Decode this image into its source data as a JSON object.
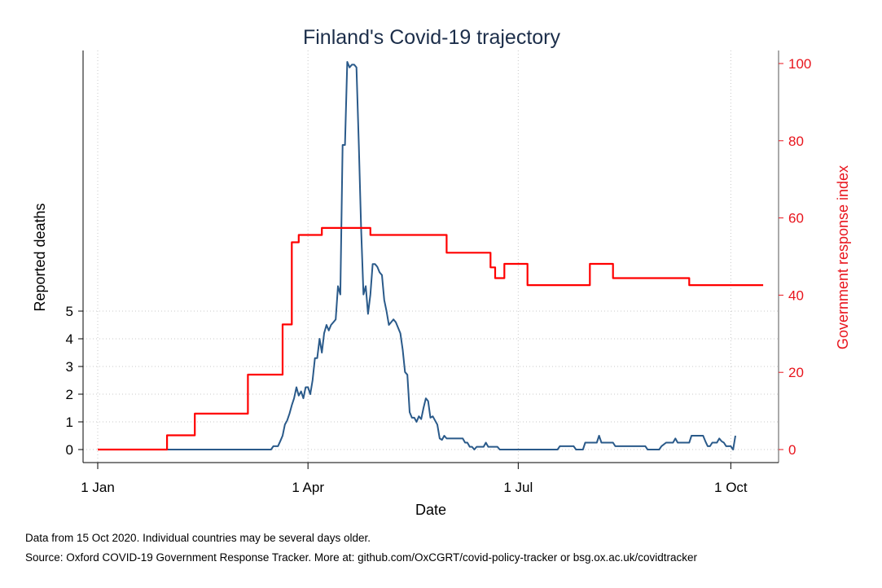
{
  "chart_data": {
    "type": "line",
    "title": "Finland's Covid-19 trajectory",
    "xlabel": "Date",
    "ylabel_left": "Reported deaths",
    "ylabel_right": "Government response index",
    "x_ticks": [
      "1 Jan",
      "1 Apr",
      "1 Jul",
      "1 Oct"
    ],
    "x_tick_dates": [
      "2020-01-01",
      "2020-04-01",
      "2020-07-01",
      "2020-10-01"
    ],
    "xlim": [
      "2020-01-01",
      "2020-10-15"
    ],
    "y_left_ticks": [
      0,
      1,
      2,
      3,
      4,
      5
    ],
    "y_right_ticks": [
      0,
      20,
      40,
      60,
      80,
      100
    ],
    "y_right_lim": [
      0,
      100
    ],
    "grid": true,
    "colors": {
      "deaths": "#2a5a8a",
      "index": "#ff0000",
      "title": "#1c2e4a",
      "right_axis": "#e8141c"
    },
    "series": [
      {
        "axis": "left",
        "points": [
          [
            "2020-01-01",
            0
          ],
          [
            "2020-03-16",
            0
          ],
          [
            "2020-03-17",
            0.12
          ],
          [
            "2020-03-19",
            0.12
          ],
          [
            "2020-03-20",
            0.3
          ],
          [
            "2020-03-21",
            0.5
          ],
          [
            "2020-03-22",
            0.9
          ],
          [
            "2020-03-23",
            1.05
          ],
          [
            "2020-03-24",
            1.3
          ],
          [
            "2020-03-25",
            1.6
          ],
          [
            "2020-03-26",
            1.85
          ],
          [
            "2020-03-27",
            2.25
          ],
          [
            "2020-03-28",
            1.95
          ],
          [
            "2020-03-29",
            2.1
          ],
          [
            "2020-03-30",
            1.85
          ],
          [
            "2020-03-31",
            2.25
          ],
          [
            "2020-04-01",
            2.25
          ],
          [
            "2020-04-02",
            2.0
          ],
          [
            "2020-04-03",
            2.5
          ],
          [
            "2020-04-04",
            3.3
          ],
          [
            "2020-04-05",
            3.3
          ],
          [
            "2020-04-06",
            4.0
          ],
          [
            "2020-04-07",
            3.5
          ],
          [
            "2020-04-08",
            4.2
          ],
          [
            "2020-04-09",
            4.5
          ],
          [
            "2020-04-10",
            4.3
          ],
          [
            "2020-04-11",
            4.5
          ],
          [
            "2020-04-12",
            4.6
          ],
          [
            "2020-04-13",
            4.7
          ],
          [
            "2020-04-14",
            5.9
          ],
          [
            "2020-04-15",
            5.6
          ],
          [
            "2020-04-16",
            11.0
          ],
          [
            "2020-04-17",
            11.0
          ],
          [
            "2020-04-18",
            14.0
          ],
          [
            "2020-04-19",
            13.8
          ],
          [
            "2020-04-20",
            13.9
          ],
          [
            "2020-04-21",
            13.9
          ],
          [
            "2020-04-22",
            13.8
          ],
          [
            "2020-04-23",
            11.0
          ],
          [
            "2020-04-24",
            8.0
          ],
          [
            "2020-04-25",
            5.6
          ],
          [
            "2020-04-26",
            5.9
          ],
          [
            "2020-04-27",
            4.9
          ],
          [
            "2020-04-28",
            5.6
          ],
          [
            "2020-04-29",
            6.7
          ],
          [
            "2020-04-30",
            6.7
          ],
          [
            "2020-05-01",
            6.6
          ],
          [
            "2020-05-02",
            6.4
          ],
          [
            "2020-05-03",
            6.3
          ],
          [
            "2020-05-04",
            5.4
          ],
          [
            "2020-05-05",
            5.0
          ],
          [
            "2020-05-06",
            4.5
          ],
          [
            "2020-05-07",
            4.6
          ],
          [
            "2020-05-08",
            4.7
          ],
          [
            "2020-05-09",
            4.6
          ],
          [
            "2020-05-10",
            4.4
          ],
          [
            "2020-05-11",
            4.2
          ],
          [
            "2020-05-12",
            3.6
          ],
          [
            "2020-05-13",
            2.8
          ],
          [
            "2020-05-14",
            2.7
          ],
          [
            "2020-05-15",
            1.35
          ],
          [
            "2020-05-16",
            1.15
          ],
          [
            "2020-05-17",
            1.15
          ],
          [
            "2020-05-18",
            1.0
          ],
          [
            "2020-05-19",
            1.2
          ],
          [
            "2020-05-20",
            1.1
          ],
          [
            "2020-05-21",
            1.5
          ],
          [
            "2020-05-22",
            1.85
          ],
          [
            "2020-05-23",
            1.75
          ],
          [
            "2020-05-24",
            1.15
          ],
          [
            "2020-05-25",
            1.2
          ],
          [
            "2020-05-26",
            1.05
          ],
          [
            "2020-05-27",
            0.9
          ],
          [
            "2020-05-28",
            0.4
          ],
          [
            "2020-05-29",
            0.35
          ],
          [
            "2020-05-30",
            0.5
          ],
          [
            "2020-05-31",
            0.4
          ],
          [
            "2020-06-01",
            0.4
          ],
          [
            "2020-06-07",
            0.4
          ],
          [
            "2020-06-08",
            0.25
          ],
          [
            "2020-06-09",
            0.25
          ],
          [
            "2020-06-10",
            0.1
          ],
          [
            "2020-06-11",
            0.1
          ],
          [
            "2020-06-12",
            0
          ],
          [
            "2020-06-13",
            0.1
          ],
          [
            "2020-06-16",
            0.1
          ],
          [
            "2020-06-17",
            0.25
          ],
          [
            "2020-06-18",
            0.1
          ],
          [
            "2020-06-22",
            0.1
          ],
          [
            "2020-06-23",
            0
          ],
          [
            "2020-07-18",
            0
          ],
          [
            "2020-07-19",
            0.12
          ],
          [
            "2020-07-25",
            0.12
          ],
          [
            "2020-07-26",
            0
          ],
          [
            "2020-07-29",
            0
          ],
          [
            "2020-07-30",
            0.25
          ],
          [
            "2020-08-04",
            0.25
          ],
          [
            "2020-08-05",
            0.5
          ],
          [
            "2020-08-06",
            0.25
          ],
          [
            "2020-08-11",
            0.25
          ],
          [
            "2020-08-12",
            0.12
          ],
          [
            "2020-08-25",
            0.12
          ],
          [
            "2020-08-26",
            0
          ],
          [
            "2020-08-31",
            0
          ],
          [
            "2020-09-01",
            0.12
          ],
          [
            "2020-09-03",
            0.25
          ],
          [
            "2020-09-06",
            0.25
          ],
          [
            "2020-09-07",
            0.4
          ],
          [
            "2020-09-08",
            0.25
          ],
          [
            "2020-09-13",
            0.25
          ],
          [
            "2020-09-14",
            0.5
          ],
          [
            "2020-09-19",
            0.5
          ],
          [
            "2020-09-20",
            0.3
          ],
          [
            "2020-09-21",
            0.12
          ],
          [
            "2020-09-22",
            0.12
          ],
          [
            "2020-09-23",
            0.25
          ],
          [
            "2020-09-25",
            0.25
          ],
          [
            "2020-09-26",
            0.4
          ],
          [
            "2020-09-27",
            0.3
          ],
          [
            "2020-09-28",
            0.25
          ],
          [
            "2020-09-29",
            0.12
          ],
          [
            "2020-10-01",
            0.12
          ],
          [
            "2020-10-02",
            0.0
          ],
          [
            "2020-10-03",
            0.5
          ]
        ]
      },
      {
        "axis": "right",
        "points": [
          [
            "2020-01-01",
            0
          ],
          [
            "2020-01-31",
            0
          ],
          [
            "2020-01-31",
            3.7
          ],
          [
            "2020-02-12",
            3.7
          ],
          [
            "2020-02-12",
            9.3
          ],
          [
            "2020-03-06",
            9.3
          ],
          [
            "2020-03-06",
            19.4
          ],
          [
            "2020-03-21",
            19.4
          ],
          [
            "2020-03-21",
            32.4
          ],
          [
            "2020-03-25",
            32.4
          ],
          [
            "2020-03-25",
            53.7
          ],
          [
            "2020-03-28",
            53.7
          ],
          [
            "2020-03-28",
            55.6
          ],
          [
            "2020-04-07",
            55.6
          ],
          [
            "2020-04-07",
            57.4
          ],
          [
            "2020-04-28",
            57.4
          ],
          [
            "2020-04-28",
            55.6
          ],
          [
            "2020-05-31",
            55.6
          ],
          [
            "2020-05-31",
            51.0
          ],
          [
            "2020-06-19",
            51.0
          ],
          [
            "2020-06-19",
            47.2
          ],
          [
            "2020-06-21",
            47.2
          ],
          [
            "2020-06-21",
            44.4
          ],
          [
            "2020-06-25",
            44.4
          ],
          [
            "2020-06-25",
            48.1
          ],
          [
            "2020-07-05",
            48.1
          ],
          [
            "2020-07-05",
            42.6
          ],
          [
            "2020-08-01",
            42.6
          ],
          [
            "2020-08-01",
            48.1
          ],
          [
            "2020-08-11",
            48.1
          ],
          [
            "2020-08-11",
            44.4
          ],
          [
            "2020-09-13",
            44.4
          ],
          [
            "2020-09-13",
            42.6
          ],
          [
            "2020-10-15",
            42.6
          ]
        ]
      }
    ]
  },
  "notes": {
    "line1": "Data from 15 Oct 2020. Individual countries may be several days older.",
    "line2": "Source: Oxford COVID-19 Government Response Tracker. More at: github.com/OxCGRT/covid-policy-tracker or bsg.ox.ac.uk/covidtracker"
  }
}
